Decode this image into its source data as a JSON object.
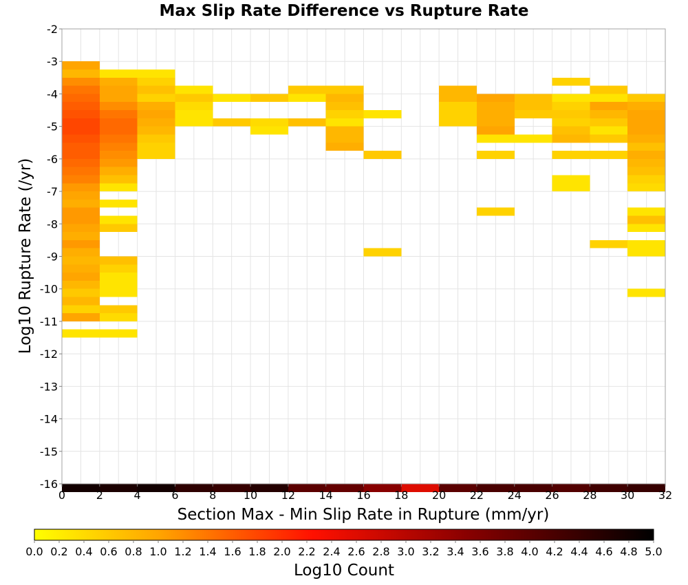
{
  "chart_data": {
    "type": "heatmap",
    "title": "Max Slip Rate Difference vs Rupture Rate",
    "xlabel": "Section Max - Min Slip Rate in Rupture (mm/yr)",
    "ylabel": "Log10 Rupture Rate (/yr)",
    "xlim": [
      0,
      32
    ],
    "ylim": [
      -16,
      -2
    ],
    "x_ticks": [
      "0",
      "2",
      "4",
      "6",
      "8",
      "10",
      "12",
      "14",
      "16",
      "18",
      "20",
      "22",
      "24",
      "26",
      "28",
      "30",
      "32"
    ],
    "y_ticks": [
      "-2",
      "-3",
      "-4",
      "-5",
      "-6",
      "-7",
      "-8",
      "-9",
      "-10",
      "-11",
      "-12",
      "-13",
      "-14",
      "-15",
      "-16"
    ],
    "x_bin_width": 2,
    "y_bin_height": 0.25,
    "grid": true,
    "colorbar": {
      "label": "Log10 Count",
      "min": 0.0,
      "max": 5.0,
      "ticks": [
        "0.0",
        "0.2",
        "0.4",
        "0.6",
        "0.8",
        "1.0",
        "1.2",
        "1.4",
        "1.6",
        "1.8",
        "2.0",
        "2.2",
        "2.4",
        "2.6",
        "2.8",
        "3.0",
        "3.2",
        "3.4",
        "3.6",
        "3.8",
        "4.0",
        "4.2",
        "4.4",
        "4.6",
        "4.8",
        "5.0"
      ],
      "colors": [
        "#ffff00",
        "#ffa500",
        "#ff0000",
        "#800000",
        "#000000"
      ],
      "placement": "bottom"
    },
    "cells": [
      {
        "x": 0,
        "y": -3.0,
        "v": 1.0
      },
      {
        "x": 0,
        "y": -3.25,
        "v": 0.8
      },
      {
        "x": 0,
        "y": -3.5,
        "v": 1.2
      },
      {
        "x": 0,
        "y": -3.75,
        "v": 1.4
      },
      {
        "x": 0,
        "y": -4.0,
        "v": 1.5
      },
      {
        "x": 0,
        "y": -4.25,
        "v": 1.6
      },
      {
        "x": 0,
        "y": -4.5,
        "v": 1.7
      },
      {
        "x": 0,
        "y": -4.75,
        "v": 1.8
      },
      {
        "x": 0,
        "y": -5.0,
        "v": 1.8
      },
      {
        "x": 0,
        "y": -5.25,
        "v": 1.7
      },
      {
        "x": 0,
        "y": -5.5,
        "v": 1.6
      },
      {
        "x": 0,
        "y": -5.75,
        "v": 1.6
      },
      {
        "x": 0,
        "y": -6.0,
        "v": 1.5
      },
      {
        "x": 0,
        "y": -6.25,
        "v": 1.4
      },
      {
        "x": 0,
        "y": -6.5,
        "v": 1.3
      },
      {
        "x": 0,
        "y": -6.75,
        "v": 1.1
      },
      {
        "x": 0,
        "y": -7.0,
        "v": 1.0
      },
      {
        "x": 0,
        "y": -7.25,
        "v": 0.9
      },
      {
        "x": 0,
        "y": -7.5,
        "v": 1.1
      },
      {
        "x": 0,
        "y": -7.75,
        "v": 1.1
      },
      {
        "x": 0,
        "y": -8.0,
        "v": 1.0
      },
      {
        "x": 0,
        "y": -8.25,
        "v": 0.9
      },
      {
        "x": 0,
        "y": -8.5,
        "v": 1.1
      },
      {
        "x": 0,
        "y": -8.75,
        "v": 0.9
      },
      {
        "x": 0,
        "y": -9.0,
        "v": 0.8
      },
      {
        "x": 0,
        "y": -9.25,
        "v": 0.9
      },
      {
        "x": 0,
        "y": -9.5,
        "v": 1.0
      },
      {
        "x": 0,
        "y": -9.75,
        "v": 0.8
      },
      {
        "x": 0,
        "y": -10.0,
        "v": 0.6
      },
      {
        "x": 0,
        "y": -10.25,
        "v": 0.8
      },
      {
        "x": 0,
        "y": -10.5,
        "v": 0.5
      },
      {
        "x": 0,
        "y": -10.75,
        "v": 1.0
      },
      {
        "x": 0,
        "y": -11.25,
        "v": 0.3
      },
      {
        "x": 2,
        "y": -3.25,
        "v": 0.3
      },
      {
        "x": 2,
        "y": -3.5,
        "v": 0.9
      },
      {
        "x": 2,
        "y": -3.75,
        "v": 1.0
      },
      {
        "x": 2,
        "y": -4.0,
        "v": 1.0
      },
      {
        "x": 2,
        "y": -4.25,
        "v": 1.2
      },
      {
        "x": 2,
        "y": -4.5,
        "v": 1.4
      },
      {
        "x": 2,
        "y": -4.75,
        "v": 1.5
      },
      {
        "x": 2,
        "y": -5.0,
        "v": 1.5
      },
      {
        "x": 2,
        "y": -5.25,
        "v": 1.4
      },
      {
        "x": 2,
        "y": -5.5,
        "v": 1.3
      },
      {
        "x": 2,
        "y": -5.75,
        "v": 1.2
      },
      {
        "x": 2,
        "y": -6.0,
        "v": 1.1
      },
      {
        "x": 2,
        "y": -6.25,
        "v": 0.9
      },
      {
        "x": 2,
        "y": -6.5,
        "v": 0.7
      },
      {
        "x": 2,
        "y": -6.75,
        "v": 0.3
      },
      {
        "x": 2,
        "y": -7.25,
        "v": 0.3
      },
      {
        "x": 2,
        "y": -7.75,
        "v": 0.3
      },
      {
        "x": 2,
        "y": -8.0,
        "v": 0.6
      },
      {
        "x": 2,
        "y": -9.0,
        "v": 0.7
      },
      {
        "x": 2,
        "y": -9.25,
        "v": 0.5
      },
      {
        "x": 2,
        "y": -9.5,
        "v": 0.3
      },
      {
        "x": 2,
        "y": -9.75,
        "v": 0.3
      },
      {
        "x": 2,
        "y": -10.0,
        "v": 0.3
      },
      {
        "x": 2,
        "y": -10.5,
        "v": 0.6
      },
      {
        "x": 2,
        "y": -10.75,
        "v": 0.4
      },
      {
        "x": 2,
        "y": -11.25,
        "v": 0.3
      },
      {
        "x": 4,
        "y": -3.25,
        "v": 0.3
      },
      {
        "x": 4,
        "y": -3.5,
        "v": 0.5
      },
      {
        "x": 4,
        "y": -3.75,
        "v": 0.7
      },
      {
        "x": 4,
        "y": -4.0,
        "v": 0.5
      },
      {
        "x": 4,
        "y": -4.25,
        "v": 0.9
      },
      {
        "x": 4,
        "y": -4.5,
        "v": 1.0
      },
      {
        "x": 4,
        "y": -4.75,
        "v": 0.9
      },
      {
        "x": 4,
        "y": -5.0,
        "v": 0.8
      },
      {
        "x": 4,
        "y": -5.25,
        "v": 0.6
      },
      {
        "x": 4,
        "y": -5.5,
        "v": 0.5
      },
      {
        "x": 4,
        "y": -5.75,
        "v": 0.5
      },
      {
        "x": 6,
        "y": -3.75,
        "v": 0.3
      },
      {
        "x": 6,
        "y": -4.0,
        "v": 0.6
      },
      {
        "x": 6,
        "y": -4.25,
        "v": 0.4
      },
      {
        "x": 6,
        "y": -4.5,
        "v": 0.3
      },
      {
        "x": 6,
        "y": -4.75,
        "v": 0.3
      },
      {
        "x": 8,
        "y": -4.0,
        "v": 0.3
      },
      {
        "x": 8,
        "y": -4.75,
        "v": 0.6
      },
      {
        "x": 10,
        "y": -4.0,
        "v": 0.6
      },
      {
        "x": 10,
        "y": -4.75,
        "v": 0.4
      },
      {
        "x": 10,
        "y": -5.0,
        "v": 0.3
      },
      {
        "x": 12,
        "y": -3.75,
        "v": 0.6
      },
      {
        "x": 12,
        "y": -4.0,
        "v": 0.3
      },
      {
        "x": 12,
        "y": -4.75,
        "v": 0.7
      },
      {
        "x": 14,
        "y": -3.75,
        "v": 0.6
      },
      {
        "x": 14,
        "y": -4.0,
        "v": 0.8
      },
      {
        "x": 14,
        "y": -4.25,
        "v": 0.7
      },
      {
        "x": 14,
        "y": -4.5,
        "v": 0.5
      },
      {
        "x": 14,
        "y": -4.75,
        "v": 0.3
      },
      {
        "x": 14,
        "y": -5.0,
        "v": 0.8
      },
      {
        "x": 14,
        "y": -5.25,
        "v": 0.8
      },
      {
        "x": 14,
        "y": -5.5,
        "v": 0.9
      },
      {
        "x": 16,
        "y": -4.5,
        "v": 0.3
      },
      {
        "x": 16,
        "y": -5.75,
        "v": 0.6
      },
      {
        "x": 16,
        "y": -8.75,
        "v": 0.5
      },
      {
        "x": 20,
        "y": -3.75,
        "v": 0.8
      },
      {
        "x": 20,
        "y": -4.0,
        "v": 0.8
      },
      {
        "x": 20,
        "y": -4.25,
        "v": 0.5
      },
      {
        "x": 20,
        "y": -4.5,
        "v": 0.5
      },
      {
        "x": 20,
        "y": -4.75,
        "v": 0.5
      },
      {
        "x": 22,
        "y": -4.0,
        "v": 1.0
      },
      {
        "x": 22,
        "y": -4.25,
        "v": 0.9
      },
      {
        "x": 22,
        "y": -4.5,
        "v": 0.9
      },
      {
        "x": 22,
        "y": -4.75,
        "v": 0.9
      },
      {
        "x": 22,
        "y": -5.0,
        "v": 1.0
      },
      {
        "x": 22,
        "y": -5.25,
        "v": 0.3
      },
      {
        "x": 22,
        "y": -5.75,
        "v": 0.5
      },
      {
        "x": 22,
        "y": -7.5,
        "v": 0.5
      },
      {
        "x": 24,
        "y": -4.0,
        "v": 0.7
      },
      {
        "x": 24,
        "y": -4.25,
        "v": 0.7
      },
      {
        "x": 24,
        "y": -4.5,
        "v": 0.6
      },
      {
        "x": 24,
        "y": -5.25,
        "v": 0.3
      },
      {
        "x": 26,
        "y": -3.5,
        "v": 0.5
      },
      {
        "x": 26,
        "y": -4.0,
        "v": 0.3
      },
      {
        "x": 26,
        "y": -4.25,
        "v": 0.5
      },
      {
        "x": 26,
        "y": -4.5,
        "v": 0.6
      },
      {
        "x": 26,
        "y": -4.75,
        "v": 0.5
      },
      {
        "x": 26,
        "y": -5.0,
        "v": 0.7
      },
      {
        "x": 26,
        "y": -5.25,
        "v": 0.8
      },
      {
        "x": 26,
        "y": -5.75,
        "v": 0.5
      },
      {
        "x": 26,
        "y": -6.5,
        "v": 0.3
      },
      {
        "x": 26,
        "y": -6.75,
        "v": 0.3
      },
      {
        "x": 28,
        "y": -3.75,
        "v": 0.6
      },
      {
        "x": 28,
        "y": -4.0,
        "v": 0.3
      },
      {
        "x": 28,
        "y": -4.25,
        "v": 1.0
      },
      {
        "x": 28,
        "y": -4.5,
        "v": 0.8
      },
      {
        "x": 28,
        "y": -4.75,
        "v": 0.6
      },
      {
        "x": 28,
        "y": -5.0,
        "v": 0.3
      },
      {
        "x": 28,
        "y": -5.25,
        "v": 0.6
      },
      {
        "x": 28,
        "y": -5.75,
        "v": 0.5
      },
      {
        "x": 28,
        "y": -8.5,
        "v": 0.5
      },
      {
        "x": 30,
        "y": -4.0,
        "v": 0.6
      },
      {
        "x": 30,
        "y": -4.25,
        "v": 0.9
      },
      {
        "x": 30,
        "y": -4.5,
        "v": 1.0
      },
      {
        "x": 30,
        "y": -4.75,
        "v": 1.0
      },
      {
        "x": 30,
        "y": -5.0,
        "v": 1.0
      },
      {
        "x": 30,
        "y": -5.25,
        "v": 0.9
      },
      {
        "x": 30,
        "y": -5.5,
        "v": 0.7
      },
      {
        "x": 30,
        "y": -5.75,
        "v": 0.9
      },
      {
        "x": 30,
        "y": -6.0,
        "v": 0.8
      },
      {
        "x": 30,
        "y": -6.25,
        "v": 0.7
      },
      {
        "x": 30,
        "y": -6.5,
        "v": 0.5
      },
      {
        "x": 30,
        "y": -6.75,
        "v": 0.4
      },
      {
        "x": 30,
        "y": -7.5,
        "v": 0.3
      },
      {
        "x": 30,
        "y": -7.75,
        "v": 0.7
      },
      {
        "x": 30,
        "y": -8.0,
        "v": 0.3
      },
      {
        "x": 30,
        "y": -8.5,
        "v": 0.3
      },
      {
        "x": 30,
        "y": -8.75,
        "v": 0.3
      },
      {
        "x": 30,
        "y": -10.0,
        "v": 0.3
      },
      {
        "x": 0,
        "y": -16.0,
        "v": 4.8
      },
      {
        "x": 2,
        "y": -16.0,
        "v": 4.7
      },
      {
        "x": 4,
        "y": -16.0,
        "v": 4.8
      },
      {
        "x": 6,
        "y": -16.0,
        "v": 4.5
      },
      {
        "x": 8,
        "y": -16.0,
        "v": 4.4
      },
      {
        "x": 10,
        "y": -16.0,
        "v": 4.6
      },
      {
        "x": 12,
        "y": -16.0,
        "v": 4.0
      },
      {
        "x": 14,
        "y": -16.0,
        "v": 3.9
      },
      {
        "x": 16,
        "y": -16.0,
        "v": 3.5
      },
      {
        "x": 18,
        "y": -16.0,
        "v": 2.6
      },
      {
        "x": 20,
        "y": -16.0,
        "v": 4.0
      },
      {
        "x": 22,
        "y": -16.0,
        "v": 4.2
      },
      {
        "x": 24,
        "y": -16.0,
        "v": 4.2
      },
      {
        "x": 26,
        "y": -16.0,
        "v": 4.1
      },
      {
        "x": 28,
        "y": -16.0,
        "v": 4.3
      },
      {
        "x": 30,
        "y": -16.0,
        "v": 4.4
      }
    ]
  }
}
